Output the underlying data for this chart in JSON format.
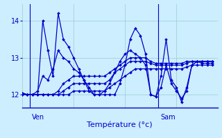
{
  "xlabel": "Température (°c)",
  "bg_color": "#cceeff",
  "line_color": "#0000cc",
  "grid_color": "#99cccc",
  "tick_label_color": "#0000cc",
  "axis_label_color": "#0000cc",
  "ylim": [
    11.65,
    14.45
  ],
  "yticks": [
    12,
    13,
    14
  ],
  "xlim": [
    0,
    38
  ],
  "ven_x": 1.5,
  "sam_x": 26.5,
  "ven_label": "Ven",
  "sam_label": "Sam",
  "series": [
    [
      12.05,
      12.0,
      12.0,
      12.0,
      14.0,
      13.2,
      12.5,
      14.2,
      13.5,
      13.3,
      13.0,
      12.7,
      12.4,
      12.1,
      12.0,
      12.0,
      12.0,
      12.0,
      12.0,
      12.3,
      12.8,
      13.5,
      13.8,
      13.6,
      13.1,
      12.0,
      11.95,
      12.5,
      13.5,
      12.4,
      12.2,
      11.8,
      12.2,
      12.8,
      12.9,
      12.85,
      12.85,
      12.85
    ],
    [
      12.05,
      12.0,
      12.0,
      12.1,
      12.5,
      12.4,
      12.7,
      13.2,
      13.0,
      12.9,
      12.7,
      12.6,
      12.4,
      12.2,
      12.0,
      12.0,
      12.1,
      12.3,
      12.6,
      12.9,
      13.1,
      13.2,
      13.1,
      13.0,
      12.8,
      12.0,
      11.95,
      12.2,
      12.8,
      12.3,
      12.1,
      11.9,
      12.1,
      12.8,
      12.9,
      12.9,
      12.9,
      12.9
    ],
    [
      12.0,
      12.0,
      12.0,
      12.0,
      12.0,
      12.0,
      12.0,
      12.1,
      12.3,
      12.4,
      12.5,
      12.5,
      12.5,
      12.5,
      12.5,
      12.5,
      12.5,
      12.6,
      12.7,
      12.8,
      12.9,
      13.0,
      13.0,
      13.0,
      13.0,
      12.9,
      12.85,
      12.85,
      12.85,
      12.85,
      12.85,
      12.85,
      12.9,
      12.9,
      12.9,
      12.9,
      12.9,
      12.9
    ],
    [
      12.0,
      12.0,
      12.0,
      12.0,
      12.0,
      12.0,
      12.0,
      12.0,
      12.1,
      12.2,
      12.3,
      12.3,
      12.3,
      12.3,
      12.3,
      12.3,
      12.3,
      12.4,
      12.6,
      12.7,
      12.8,
      12.9,
      12.9,
      12.9,
      12.9,
      12.85,
      12.8,
      12.8,
      12.8,
      12.8,
      12.8,
      12.8,
      12.85,
      12.9,
      12.9,
      12.9,
      12.9,
      12.9
    ],
    [
      12.0,
      12.0,
      12.0,
      12.0,
      12.0,
      12.0,
      12.0,
      12.0,
      12.0,
      12.0,
      12.1,
      12.1,
      12.1,
      12.1,
      12.1,
      12.1,
      12.1,
      12.2,
      12.3,
      12.4,
      12.5,
      12.6,
      12.7,
      12.7,
      12.7,
      12.7,
      12.7,
      12.7,
      12.7,
      12.7,
      12.7,
      12.7,
      12.75,
      12.8,
      12.8,
      12.8,
      12.8,
      12.8
    ]
  ],
  "marker": "D",
  "markersize": 2.0,
  "linewidth": 0.9
}
